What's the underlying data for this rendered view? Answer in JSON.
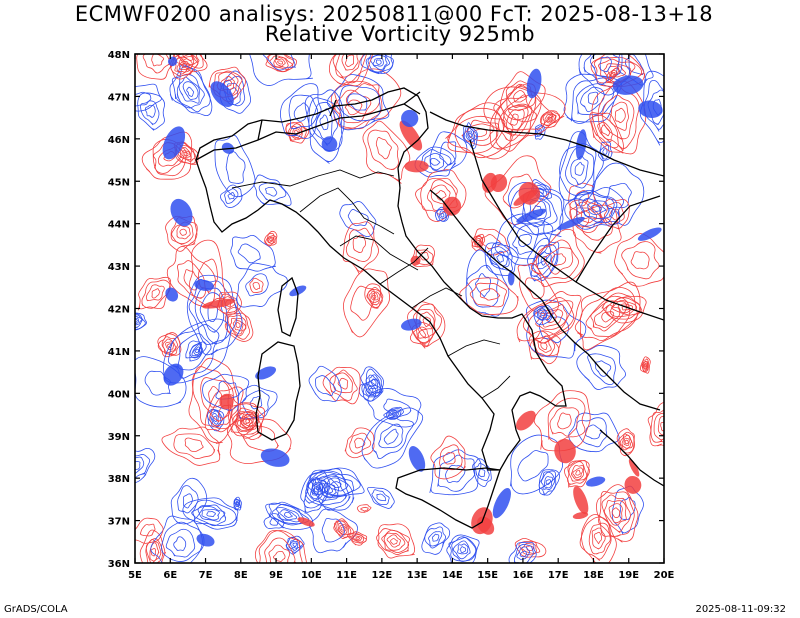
{
  "title_line1": "ECMWF0200 analisys: 20250811@00 FcT: 2025-08-13+18",
  "title_line2": "Relative Vorticity 925mb",
  "footer_left": "GrADS/COLA",
  "footer_right": "2025-08-11-09:32",
  "colors": {
    "positive": "#f24040",
    "negative": "#3050f0",
    "frame": "#000000",
    "coast": "#000000"
  },
  "lat_labels": [
    "48N",
    "47N",
    "46N",
    "45N",
    "44N",
    "43N",
    "42N",
    "41N",
    "40N",
    "39N",
    "38N",
    "37N",
    "36N"
  ],
  "lon_labels": [
    "5E",
    "6E",
    "7E",
    "8E",
    "9E",
    "10E",
    "11E",
    "12E",
    "13E",
    "14E",
    "15E",
    "16E",
    "17E",
    "18E",
    "19E",
    "20E"
  ]
}
